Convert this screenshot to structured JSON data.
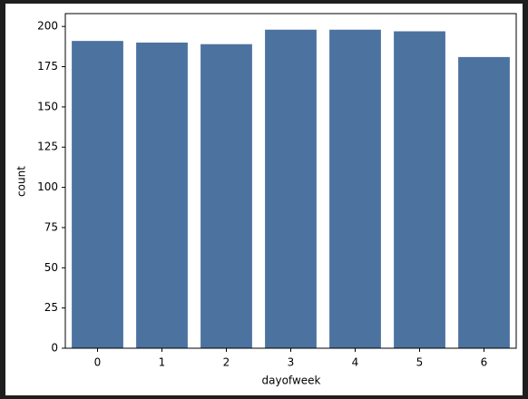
{
  "chart_data": {
    "type": "bar",
    "x_label": "dayofweek",
    "y_label": "count",
    "categories": [
      "0",
      "1",
      "2",
      "3",
      "4",
      "5",
      "6"
    ],
    "values": [
      191,
      190,
      189,
      198,
      198,
      197,
      181
    ],
    "color": "#4c72a0",
    "ylim": [
      0,
      208
    ],
    "yticks": [
      0,
      25,
      50,
      75,
      100,
      125,
      150,
      175,
      200
    ],
    "grid": false
  }
}
